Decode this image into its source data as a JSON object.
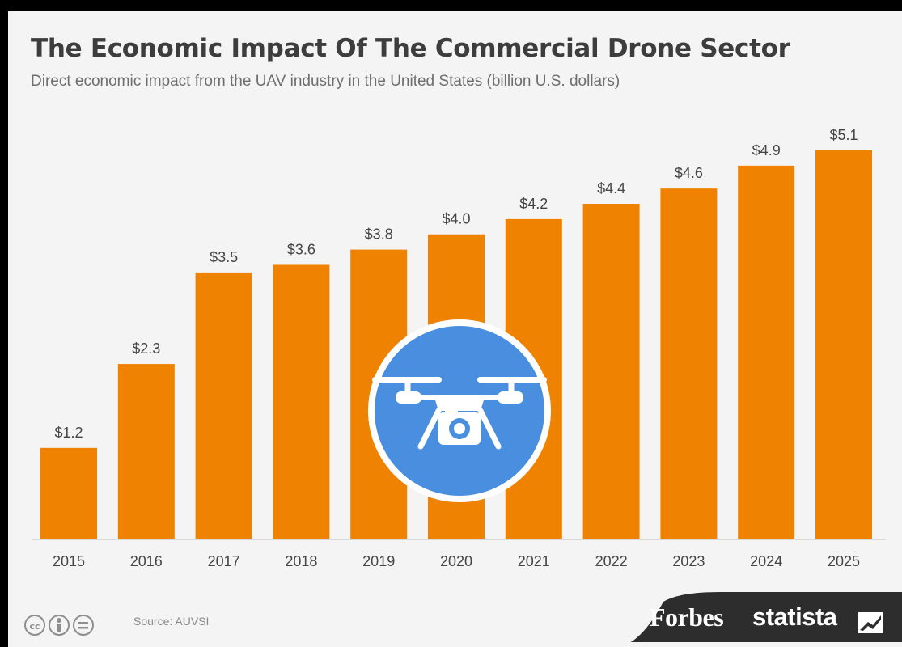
{
  "header": {
    "title": "The Economic Impact Of The Commercial Drone Sector",
    "subtitle": "Direct economic impact from the UAV industry in the United States (billion U.S. dollars)"
  },
  "footer": {
    "source": "Source: AUVSI",
    "brand_forbes": "Forbes",
    "brand_statista": "statista",
    "icons": [
      "cc-icon",
      "person-icon",
      "equals-icon"
    ]
  },
  "colors": {
    "bar": "#ef8200",
    "badge": "#4a8fdf",
    "text": "#3d3d3d"
  },
  "chart_data": {
    "type": "bar",
    "categories": [
      "2015",
      "2016",
      "2017",
      "2018",
      "2019",
      "2020",
      "2021",
      "2022",
      "2023",
      "2024",
      "2025"
    ],
    "values": [
      1.2,
      2.3,
      3.5,
      3.6,
      3.8,
      4.0,
      4.2,
      4.4,
      4.6,
      4.9,
      5.1
    ],
    "value_labels": [
      "$1.2",
      "$2.3",
      "$3.5",
      "$3.6",
      "$3.8",
      "$4.0",
      "$4.2",
      "$4.4",
      "$4.6",
      "$4.9",
      "$5.1"
    ],
    "title": "The Economic Impact Of The Commercial Drone Sector",
    "subtitle": "Direct economic impact from the UAV industry in the United States (billion U.S. dollars)",
    "xlabel": "",
    "ylabel": "",
    "ylim": [
      0,
      5.1
    ],
    "grid": false,
    "legend": "none"
  }
}
